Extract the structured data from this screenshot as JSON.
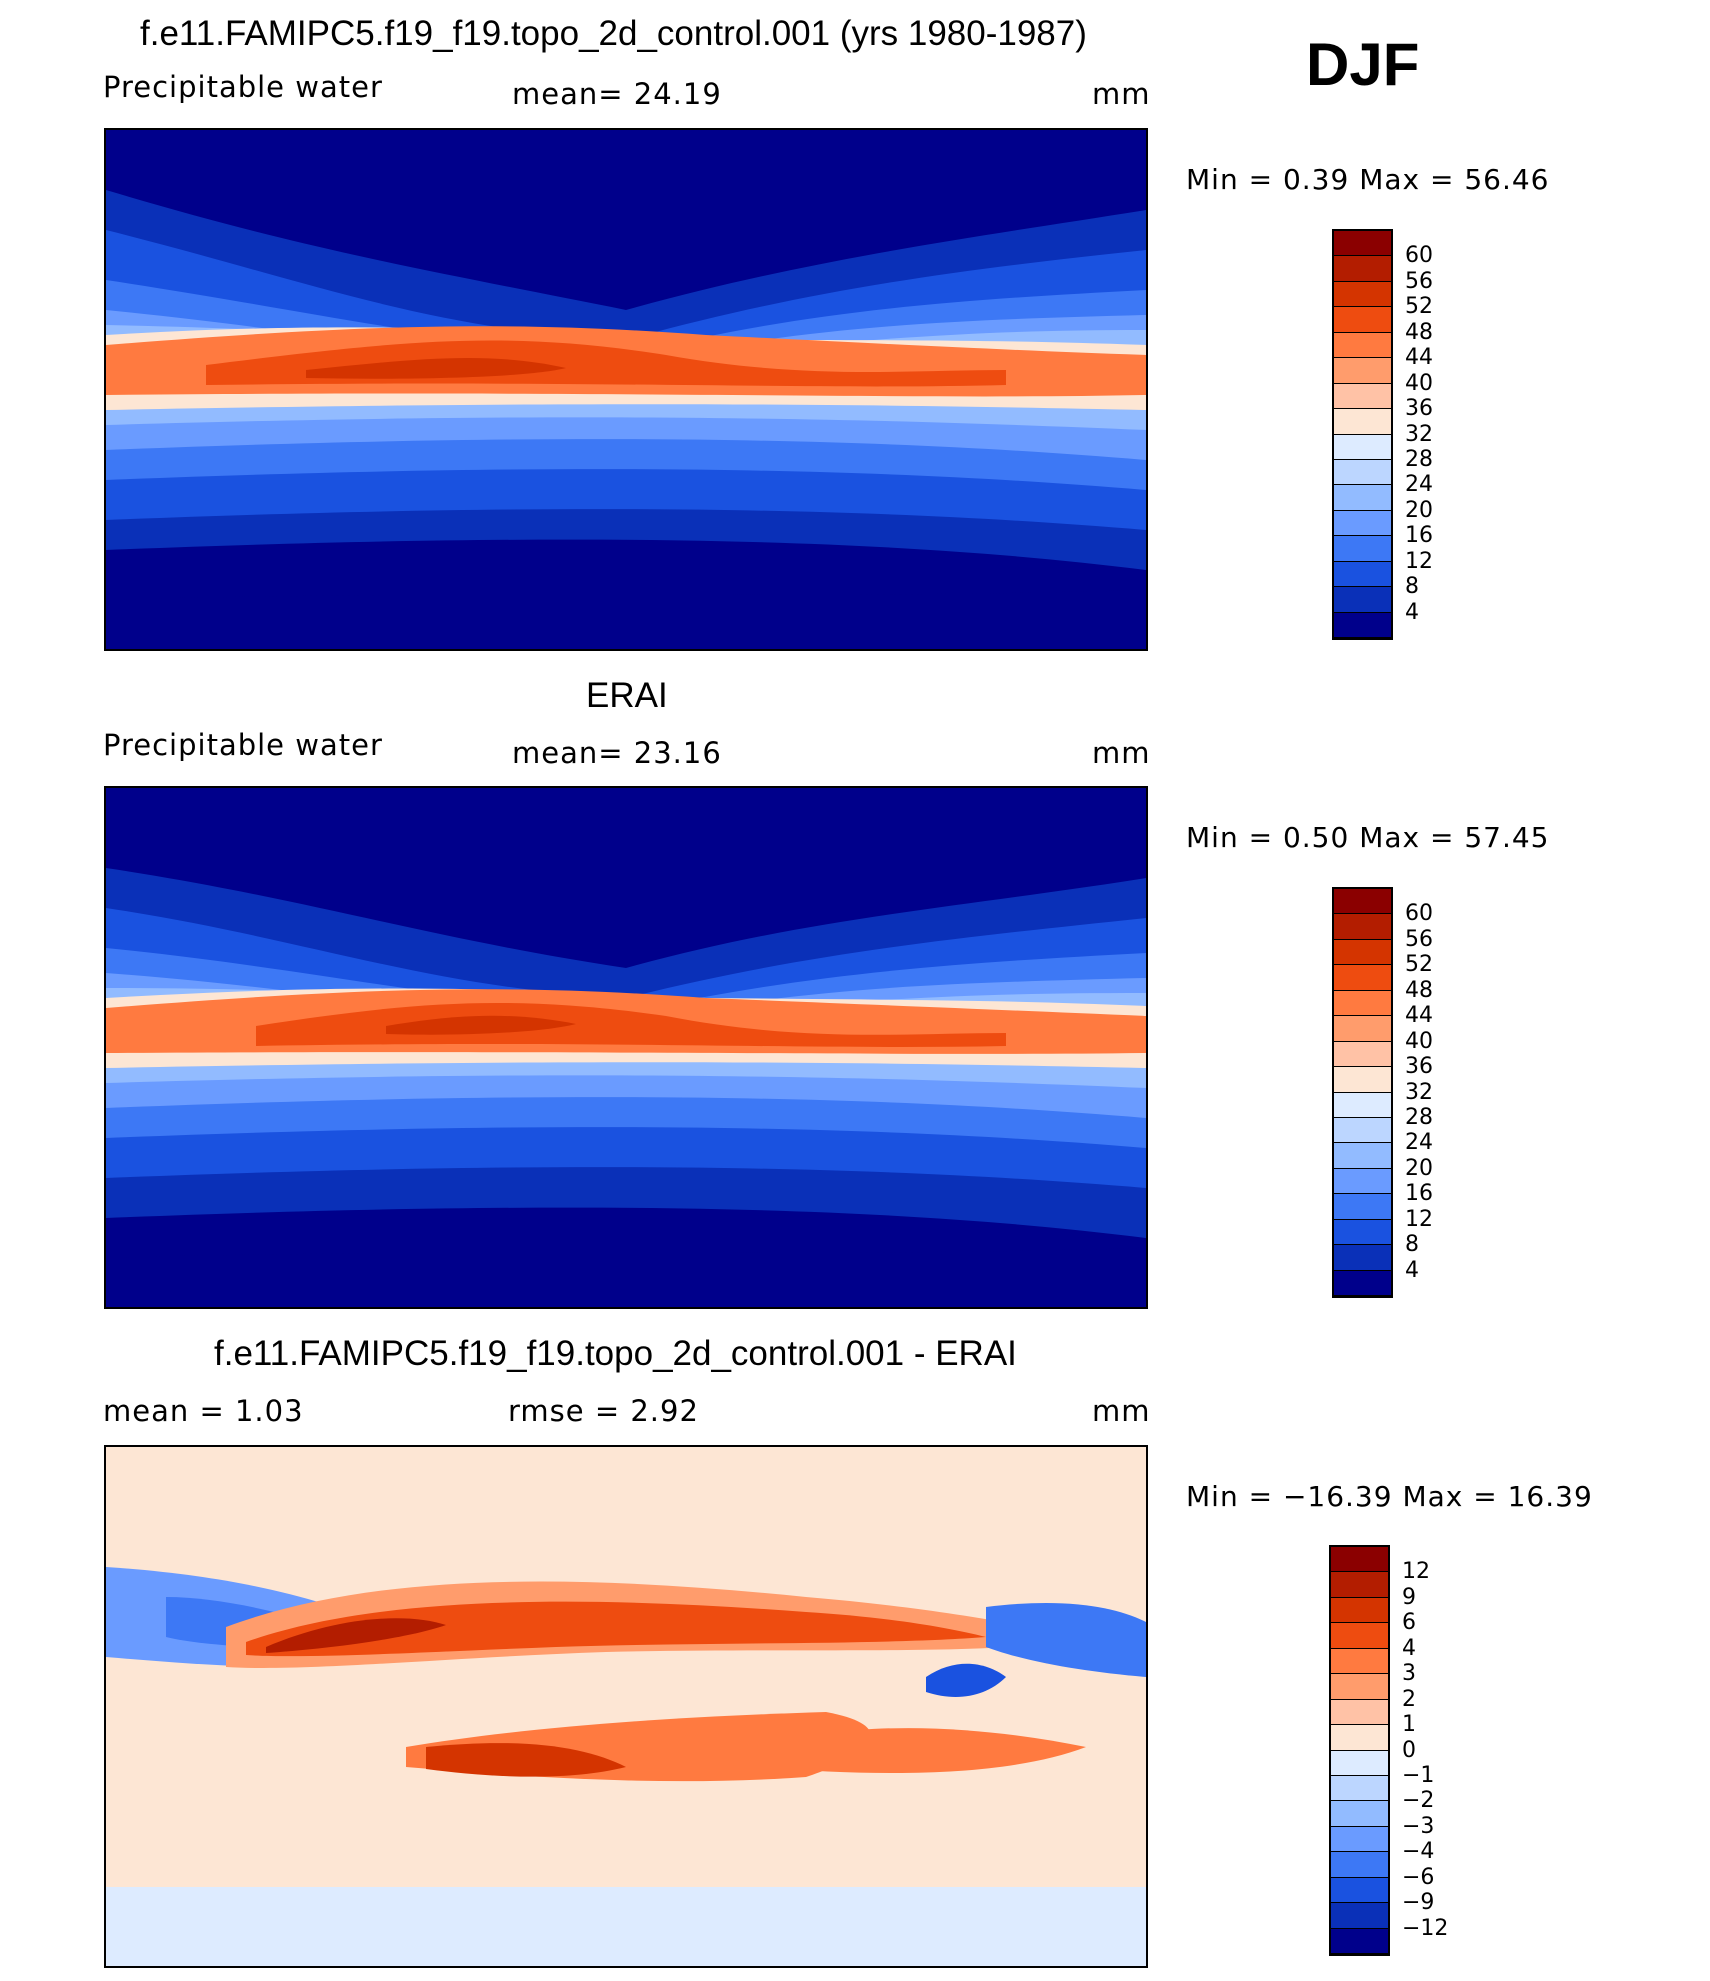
{
  "figure": {
    "season": "DJF"
  },
  "panels": [
    {
      "id": "model",
      "title": "f.e11.FAMIPC5.f19_f19.topo_2d_control.001 (yrs 1980-1987)",
      "left_label": "Precipitable  water",
      "center_label": "mean=   24.19",
      "units": "mm",
      "minmax": "Min  =     0.39  Max  =    56.46",
      "colorbar_labels": [
        "60",
        "56",
        "52",
        "48",
        "44",
        "40",
        "36",
        "32",
        "28",
        "24",
        "20",
        "16",
        "12",
        "8",
        "4"
      ],
      "colorbar_colors": [
        "#8b0000",
        "#b31d00",
        "#d43400",
        "#ee4c10",
        "#ff7a40",
        "#ff9c6c",
        "#ffc2a6",
        "#fde6d4",
        "#ddebff",
        "#bcd6ff",
        "#92bbff",
        "#6a9bff",
        "#3d78f5",
        "#1a52e0",
        "#0a30b8",
        "#00008b"
      ]
    },
    {
      "id": "obs",
      "title": "ERAI",
      "left_label": "Precipitable  water",
      "center_label": "mean=   23.16",
      "units": "mm",
      "minmax": "Min  =     0.50  Max  =    57.45",
      "colorbar_labels": [
        "60",
        "56",
        "52",
        "48",
        "44",
        "40",
        "36",
        "32",
        "28",
        "24",
        "20",
        "16",
        "12",
        "8",
        "4"
      ],
      "colorbar_colors": [
        "#8b0000",
        "#b31d00",
        "#d43400",
        "#ee4c10",
        "#ff7a40",
        "#ff9c6c",
        "#ffc2a6",
        "#fde6d4",
        "#ddebff",
        "#bcd6ff",
        "#92bbff",
        "#6a9bff",
        "#3d78f5",
        "#1a52e0",
        "#0a30b8",
        "#00008b"
      ]
    },
    {
      "id": "diff",
      "title": "f.e11.FAMIPC5.f19_f19.topo_2d_control.001 - ERAI",
      "left_label": "mean  =      1.03",
      "center_label": "rmse  =      2.92",
      "units": "mm",
      "minmax": "Min  =  −16.39  Max  =    16.39",
      "colorbar_labels": [
        "12",
        "9",
        "6",
        "4",
        "3",
        "2",
        "1",
        "0",
        "−1",
        "−2",
        "−3",
        "−4",
        "−6",
        "−9",
        "−12"
      ],
      "colorbar_colors": [
        "#8b0000",
        "#b31d00",
        "#d43400",
        "#ee4c10",
        "#ff7a40",
        "#ff9c6c",
        "#ffc2a6",
        "#fde6d4",
        "#ddebff",
        "#bcd6ff",
        "#92bbff",
        "#6a9bff",
        "#3d78f5",
        "#1a52e0",
        "#0a30b8",
        "#00008b"
      ]
    }
  ]
}
